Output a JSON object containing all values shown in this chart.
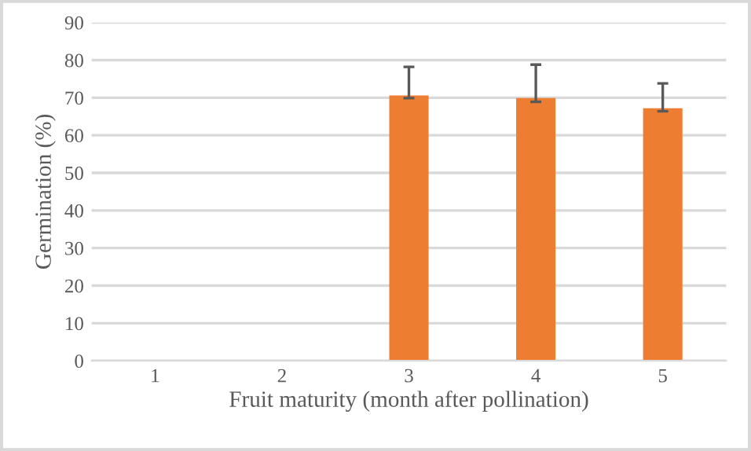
{
  "chart_data": {
    "type": "bar",
    "xlabel": "Fruit maturity (month after pollination)",
    "ylabel": "Germination (%)",
    "categories": [
      "1",
      "2",
      "3",
      "4",
      "5"
    ],
    "values": [
      0,
      0,
      70.6,
      69.9,
      67.2
    ],
    "errors": [
      null,
      null,
      [
        69.9,
        78.2
      ],
      [
        68.9,
        78.8
      ],
      [
        66.4,
        73.8
      ]
    ],
    "color": "#ed7d31",
    "ylim": [
      0,
      90
    ],
    "yticks": [
      0,
      10,
      20,
      30,
      40,
      50,
      60,
      70,
      80,
      90
    ],
    "grid": "y"
  }
}
